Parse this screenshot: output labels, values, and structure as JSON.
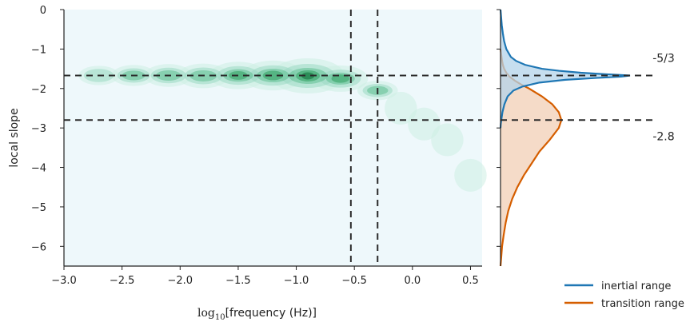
{
  "chart_data": [
    {
      "type": "heatmap",
      "kind": "2D kernel density estimate",
      "colormap": [
        "#eef8fb",
        "#cdeee4",
        "#9ad8c2",
        "#5fbf92",
        "#2e9e5e",
        "#0b6b35"
      ],
      "xlabel_prefix": "log",
      "xlabel_sub": "10",
      "xlabel_suffix": "[frequency (Hz)]",
      "ylabel": "local slope",
      "xlim": [
        -3.0,
        0.6
      ],
      "ylim": [
        -6.5,
        0.0
      ],
      "xticks": [
        -3.0,
        -2.5,
        -2.0,
        -1.5,
        -1.0,
        -0.5,
        0.0,
        0.5
      ],
      "xtick_labels": [
        "−3.0",
        "−2.5",
        "−2.0",
        "−1.5",
        "−1.0",
        "−0.5",
        "0.0",
        "0.5"
      ],
      "yticks": [
        0,
        -1,
        -2,
        -3,
        -4,
        -5,
        -6
      ],
      "ytick_labels": [
        "0",
        "−1",
        "−2",
        "−3",
        "−4",
        "−5",
        "−6"
      ],
      "density_blobs": [
        {
          "x": -2.7,
          "y": -1.67,
          "weight": 0.45
        },
        {
          "x": -2.4,
          "y": -1.67,
          "weight": 0.6
        },
        {
          "x": -2.1,
          "y": -1.67,
          "weight": 0.65
        },
        {
          "x": -1.8,
          "y": -1.68,
          "weight": 0.7
        },
        {
          "x": -1.5,
          "y": -1.67,
          "weight": 0.78
        },
        {
          "x": -1.2,
          "y": -1.67,
          "weight": 0.85
        },
        {
          "x": -0.9,
          "y": -1.68,
          "weight": 1.0
        },
        {
          "x": -0.62,
          "y": -1.75,
          "weight": 0.75
        },
        {
          "x": -0.3,
          "y": -2.05,
          "weight": 0.55
        },
        {
          "x": -0.1,
          "y": -2.5,
          "weight": 0.35
        },
        {
          "x": 0.1,
          "y": -2.9,
          "weight": 0.25
        },
        {
          "x": 0.3,
          "y": -3.3,
          "weight": 0.2
        },
        {
          "x": 0.5,
          "y": -4.2,
          "weight": 0.1
        }
      ],
      "vlines": [
        -0.53,
        -0.3
      ],
      "hlines": [
        -1.67,
        -2.8
      ],
      "line_style": "dashed",
      "line_color": "#2b2b2b",
      "grid": false
    },
    {
      "type": "area",
      "kind": "marginal density of local slope",
      "orientation": "horizontal",
      "ylim": [
        -6.5,
        0.0
      ],
      "hlines": [
        -1.67,
        -2.8
      ],
      "annotations": [
        {
          "text": "-5/3",
          "y": -1.67
        },
        {
          "text": "-2.8",
          "y": -2.8
        }
      ],
      "legend_position": "lower-right",
      "series": [
        {
          "name": "inertial range",
          "color": "#1f77b4",
          "fill": "#b3d3ea",
          "y": [
            0.0,
            -0.2,
            -0.4,
            -0.6,
            -0.8,
            -1.0,
            -1.2,
            -1.3,
            -1.4,
            -1.5,
            -1.55,
            -1.6,
            -1.64,
            -1.67,
            -1.7,
            -1.73,
            -1.78,
            -1.85,
            -1.95,
            -2.05,
            -2.2,
            -2.4,
            -2.6,
            -2.8,
            -2.9,
            -3.0
          ],
          "density": [
            0.0,
            0.005,
            0.01,
            0.018,
            0.028,
            0.045,
            0.08,
            0.12,
            0.19,
            0.32,
            0.45,
            0.62,
            0.82,
            1.0,
            0.93,
            0.75,
            0.5,
            0.3,
            0.17,
            0.1,
            0.055,
            0.03,
            0.015,
            0.006,
            0.002,
            0.0
          ]
        },
        {
          "name": "transition range",
          "color": "#d55e00",
          "fill": "#f2cfb5",
          "y": [
            -1.0,
            -1.1,
            -1.2,
            -1.3,
            -1.4,
            -1.5,
            -1.6,
            -1.7,
            -1.8,
            -1.9,
            -2.0,
            -2.2,
            -2.4,
            -2.6,
            -2.8,
            -3.0,
            -3.3,
            -3.6,
            -3.9,
            -4.2,
            -4.5,
            -4.8,
            -5.1,
            -5.4,
            -5.7,
            -6.0,
            -6.3,
            -6.5
          ],
          "density": [
            0.0,
            0.004,
            0.008,
            0.012,
            0.018,
            0.028,
            0.045,
            0.07,
            0.11,
            0.16,
            0.22,
            0.32,
            0.4,
            0.45,
            0.47,
            0.45,
            0.38,
            0.3,
            0.24,
            0.18,
            0.13,
            0.09,
            0.06,
            0.04,
            0.025,
            0.012,
            0.005,
            0.0
          ]
        }
      ]
    }
  ]
}
